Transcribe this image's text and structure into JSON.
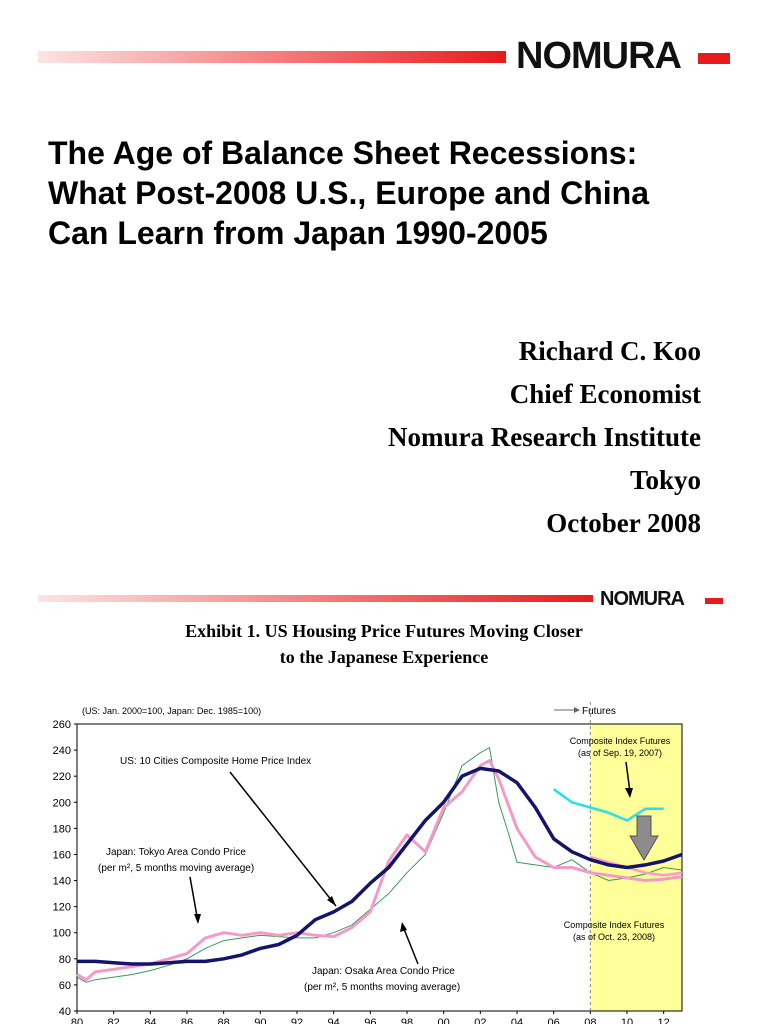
{
  "header": {
    "logo_text": "NOMURA"
  },
  "title_slide": {
    "title_lines": [
      "The Age of Balance Sheet Recessions:",
      "What Post-2008 U.S., Europe and China",
      "Can Learn from Japan 1990-2005"
    ],
    "author_lines": [
      "Richard C. Koo",
      "Chief Economist",
      "Nomura Research Institute",
      "Tokyo",
      "October 2008"
    ]
  },
  "exhibit": {
    "title_line1": "Exhibit 1.  US Housing Price Futures Moving Closer",
    "title_line2": "to the Japanese Experience"
  },
  "colors": {
    "brand_red": "#e61b1b",
    "us_index": "#14146e",
    "tokyo_condo": "#f59ac8",
    "osaka_condo": "#3c9a58",
    "futures_2007": "#28e0ea",
    "futures_2008": "#ff9ac8",
    "futures_band": "#ffff99",
    "arrow_gray": "#8c8c8c"
  },
  "chart_data": {
    "type": "line",
    "note": "(US: Jan. 2000=100, Japan: Dec. 1985=100)",
    "futures_label": "Futures",
    "x_ticks": [
      "80",
      "82",
      "84",
      "86",
      "88",
      "90",
      "92",
      "94",
      "96",
      "98",
      "00",
      "02",
      "04",
      "06",
      "08",
      "10",
      "12"
    ],
    "x_tick_years": [
      1980,
      1982,
      1984,
      1986,
      1988,
      1990,
      1992,
      1994,
      1996,
      1998,
      2000,
      2002,
      2004,
      2006,
      2008,
      2010,
      2012
    ],
    "xlim": [
      1980,
      2013
    ],
    "ylim": [
      40,
      260
    ],
    "y_ticks": [
      260,
      240,
      220,
      200,
      180,
      160,
      140,
      120,
      100,
      80,
      60,
      40
    ],
    "futures_start": 2008,
    "series": [
      {
        "name": "US: 10 Cities Composite Home Price Index",
        "color_key": "us_index",
        "width": 3.5,
        "x": [
          1980,
          1981,
          1982,
          1983,
          1984,
          1985,
          1986,
          1987,
          1988,
          1989,
          1990,
          1991,
          1992,
          1993,
          1994,
          1995,
          1996,
          1997,
          1998,
          1999,
          2000,
          2001,
          2002,
          2003,
          2004,
          2005,
          2006,
          2007,
          2008,
          2009,
          2010,
          2011,
          2012,
          2013
        ],
        "y": [
          78,
          78,
          77,
          76,
          76,
          77,
          78,
          78,
          80,
          83,
          88,
          91,
          98,
          110,
          116,
          124,
          138,
          150,
          168,
          186,
          200,
          220,
          226,
          224,
          215,
          196,
          172,
          162,
          156,
          152,
          150,
          152,
          155,
          160
        ]
      },
      {
        "name": "Japan: Tokyo Area Condo Price",
        "color_key": "tokyo_condo",
        "width": 3,
        "x": [
          1980,
          1980.5,
          1981,
          1982,
          1983,
          1984,
          1985,
          1986,
          1987,
          1988,
          1989,
          1990,
          1991,
          1992,
          1993,
          1994,
          1995,
          1996,
          1997,
          1998,
          1999,
          2000,
          2001,
          2002,
          2002.5,
          2003,
          2004,
          2005,
          2006,
          2007,
          2008,
          2009,
          2010,
          2011,
          2012,
          2013
        ],
        "y": [
          68,
          64,
          70,
          72,
          74,
          76,
          80,
          84,
          96,
          100,
          98,
          100,
          98,
          100,
          98,
          97,
          104,
          116,
          155,
          175,
          162,
          196,
          208,
          228,
          232,
          218,
          180,
          158,
          150,
          150,
          146,
          144,
          142,
          140,
          141,
          143
        ]
      },
      {
        "name": "Japan: Osaka Area Condo Price",
        "color_key": "osaka_condo",
        "width": 1,
        "x": [
          1980,
          1980.5,
          1981,
          1982,
          1983,
          1984,
          1985,
          1986,
          1987,
          1988,
          1989,
          1990,
          1991,
          1992,
          1993,
          1994,
          1995,
          1996,
          1997,
          1998,
          1999,
          2000,
          2001,
          2002,
          2002.5,
          2003,
          2003.5,
          2004,
          2005,
          2006,
          2007,
          2008,
          2009,
          2010,
          2011,
          2012,
          2013
        ],
        "y": [
          66,
          62,
          64,
          66,
          68,
          71,
          75,
          80,
          88,
          94,
          96,
          98,
          97,
          96,
          96,
          100,
          106,
          118,
          130,
          146,
          160,
          192,
          228,
          238,
          242,
          200,
          178,
          154,
          152,
          150,
          156,
          146,
          140,
          142,
          145,
          150,
          148
        ]
      },
      {
        "name": "Composite Index Futures (as of Sep. 19, 2007)",
        "color_key": "futures_2007",
        "width": 2.5,
        "x": [
          2006,
          2007,
          2008,
          2009,
          2010,
          2011,
          2012
        ],
        "y": [
          210,
          200,
          196,
          192,
          186,
          195,
          195
        ]
      },
      {
        "name": "Composite Index Futures (as of Oct. 23, 2008)",
        "color_key": "futures_2008",
        "width": 2.5,
        "x": [
          2008,
          2009,
          2010,
          2011,
          2012,
          2013
        ],
        "y": [
          158,
          154,
          150,
          146,
          144,
          146
        ]
      }
    ],
    "annotations": {
      "us_label": "US: 10 Cities Composite Home Price Index",
      "tokyo_label_1": "Japan: Tokyo Area Condo Price",
      "tokyo_label_2": "(per m², 5 months moving average)",
      "osaka_label_1": "Japan: Osaka Area Condo Price",
      "osaka_label_2": "(per m², 5 months moving average)",
      "futures_2007_label_1": "Composite Index Futures",
      "futures_2007_label_2": "(as of Sep. 19, 2007)",
      "futures_2008_label_1": "Composite Index Futures",
      "futures_2008_label_2": "(as of Oct. 23, 2008)"
    }
  }
}
